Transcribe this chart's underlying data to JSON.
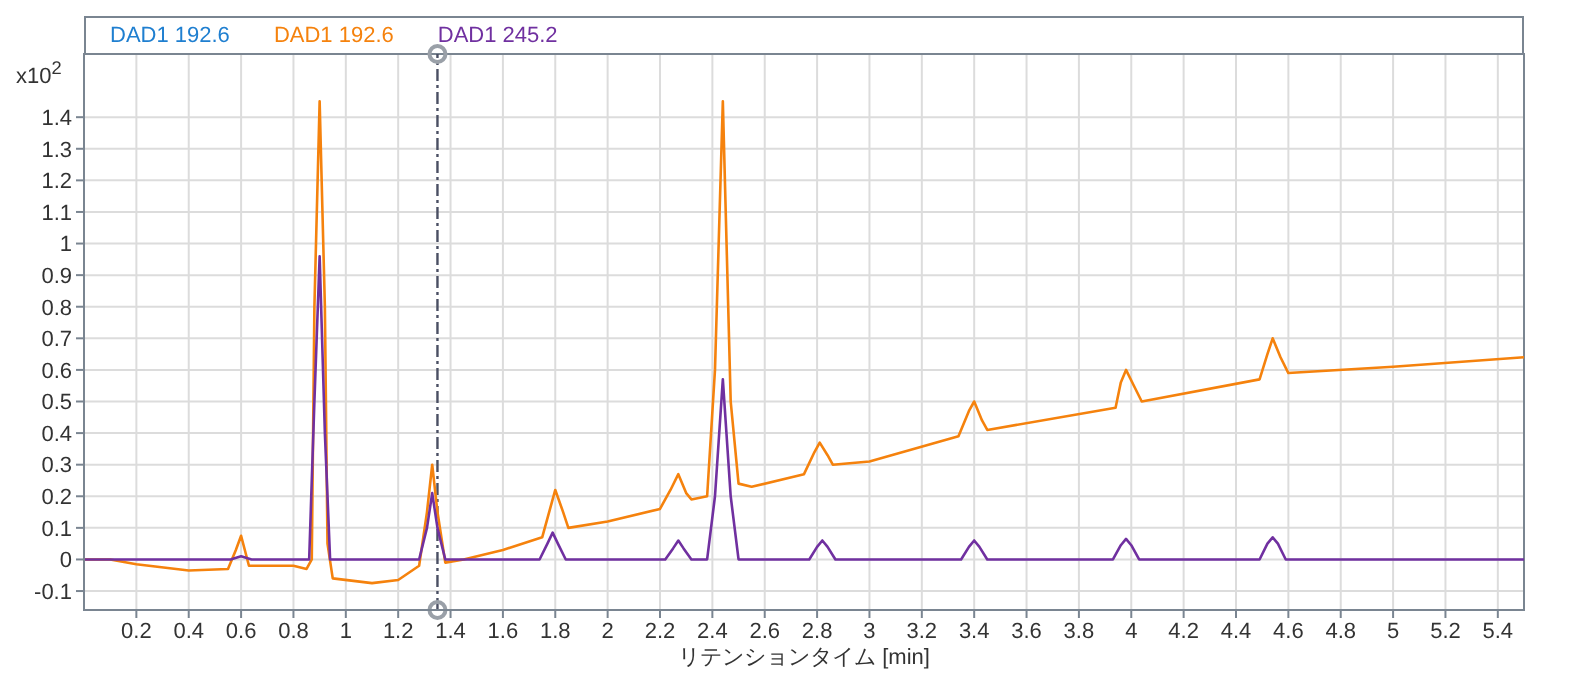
{
  "chart_data": {
    "type": "line",
    "ylabel": "x10$^{2}$",
    "xlabel": "リテンションタイム [min]",
    "legend": "top left",
    "grid": true,
    "marker": "none",
    "line_style": "solid",
    "xlim": [
      0,
      5.5
    ],
    "xticks": [
      0.2,
      0.4,
      0.6,
      0.8,
      1,
      1.2,
      1.4,
      1.6,
      1.8,
      2,
      2.2,
      2.4,
      2.6,
      2.8,
      3,
      3.2,
      3.4,
      3.6,
      3.8,
      4,
      4.2,
      4.4,
      4.6,
      4.8,
      5,
      5.2,
      5.4
    ],
    "ylim": [
      -0.16,
      1.6
    ],
    "yticks": [
      -0.1,
      0,
      0.1,
      0.2,
      0.3,
      0.4,
      0.5,
      0.6,
      0.7,
      0.8,
      0.9,
      1,
      1.1,
      1.2,
      1.3,
      1.4
    ],
    "ref_lines": [
      {
        "axis": "x",
        "value": 1.35,
        "color": "#4a4f63",
        "line_style": "dashed"
      }
    ],
    "series": [
      {
        "name": "DAD1 192.6",
        "color": "#1f7fd0"
      },
      {
        "name": "DAD1 192.6",
        "color": "#f5820d",
        "x": [
          0,
          0.1,
          0.2,
          0.4,
          0.55,
          0.58,
          0.6,
          0.63,
          0.8,
          0.85,
          0.87,
          0.88,
          0.9,
          0.92,
          0.93,
          0.95,
          1.1,
          1.2,
          1.28,
          1.31,
          1.33,
          1.35,
          1.38,
          1.45,
          1.6,
          1.75,
          1.78,
          1.8,
          1.83,
          1.85,
          2,
          2.2,
          2.24,
          2.27,
          2.3,
          2.32,
          2.38,
          2.41,
          2.44,
          2.47,
          2.5,
          2.55,
          2.75,
          2.79,
          2.81,
          2.84,
          2.86,
          3,
          3.34,
          3.38,
          3.4,
          3.43,
          3.45,
          3.94,
          3.96,
          3.98,
          4.01,
          4.04,
          4.49,
          4.52,
          4.54,
          4.57,
          4.6,
          5,
          5.5
        ],
        "values": [
          0,
          0,
          -0.015,
          -0.035,
          -0.03,
          0.03,
          0.075,
          -0.02,
          -0.02,
          -0.03,
          0,
          0.8,
          1.45,
          0.8,
          0.05,
          -0.06,
          -0.075,
          -0.065,
          -0.02,
          0.15,
          0.3,
          0.15,
          -0.01,
          0,
          0.03,
          0.07,
          0.16,
          0.22,
          0.15,
          0.1,
          0.12,
          0.16,
          0.22,
          0.27,
          0.21,
          0.19,
          0.2,
          0.6,
          1.45,
          0.5,
          0.24,
          0.23,
          0.27,
          0.34,
          0.37,
          0.33,
          0.3,
          0.31,
          0.39,
          0.47,
          0.5,
          0.44,
          0.41,
          0.48,
          0.56,
          0.6,
          0.55,
          0.5,
          0.57,
          0.65,
          0.7,
          0.64,
          0.59,
          0.61,
          0.64
        ]
      },
      {
        "name": "DAD1 245.2",
        "color": "#7030a0",
        "x": [
          0,
          0.56,
          0.6,
          0.64,
          0.86,
          0.88,
          0.9,
          0.92,
          0.94,
          1.28,
          1.31,
          1.33,
          1.35,
          1.38,
          1.74,
          1.77,
          1.79,
          1.81,
          1.84,
          2.22,
          2.25,
          2.27,
          2.29,
          2.32,
          2.38,
          2.41,
          2.44,
          2.47,
          2.5,
          2.77,
          2.8,
          2.82,
          2.84,
          2.87,
          3.35,
          3.38,
          3.4,
          3.42,
          3.45,
          3.93,
          3.96,
          3.98,
          4,
          4.03,
          4.49,
          4.52,
          4.54,
          4.56,
          4.59,
          5.5
        ],
        "values": [
          0,
          0,
          0.01,
          0,
          0,
          0.5,
          0.96,
          0.4,
          0,
          0,
          0.1,
          0.21,
          0.1,
          0,
          0,
          0.05,
          0.085,
          0.05,
          0,
          0,
          0.035,
          0.06,
          0.035,
          0,
          0,
          0.2,
          0.57,
          0.2,
          0,
          0,
          0.04,
          0.06,
          0.04,
          0,
          0,
          0.04,
          0.06,
          0.04,
          0,
          0,
          0.045,
          0.065,
          0.045,
          0,
          0,
          0.05,
          0.07,
          0.05,
          0,
          0
        ]
      }
    ]
  }
}
